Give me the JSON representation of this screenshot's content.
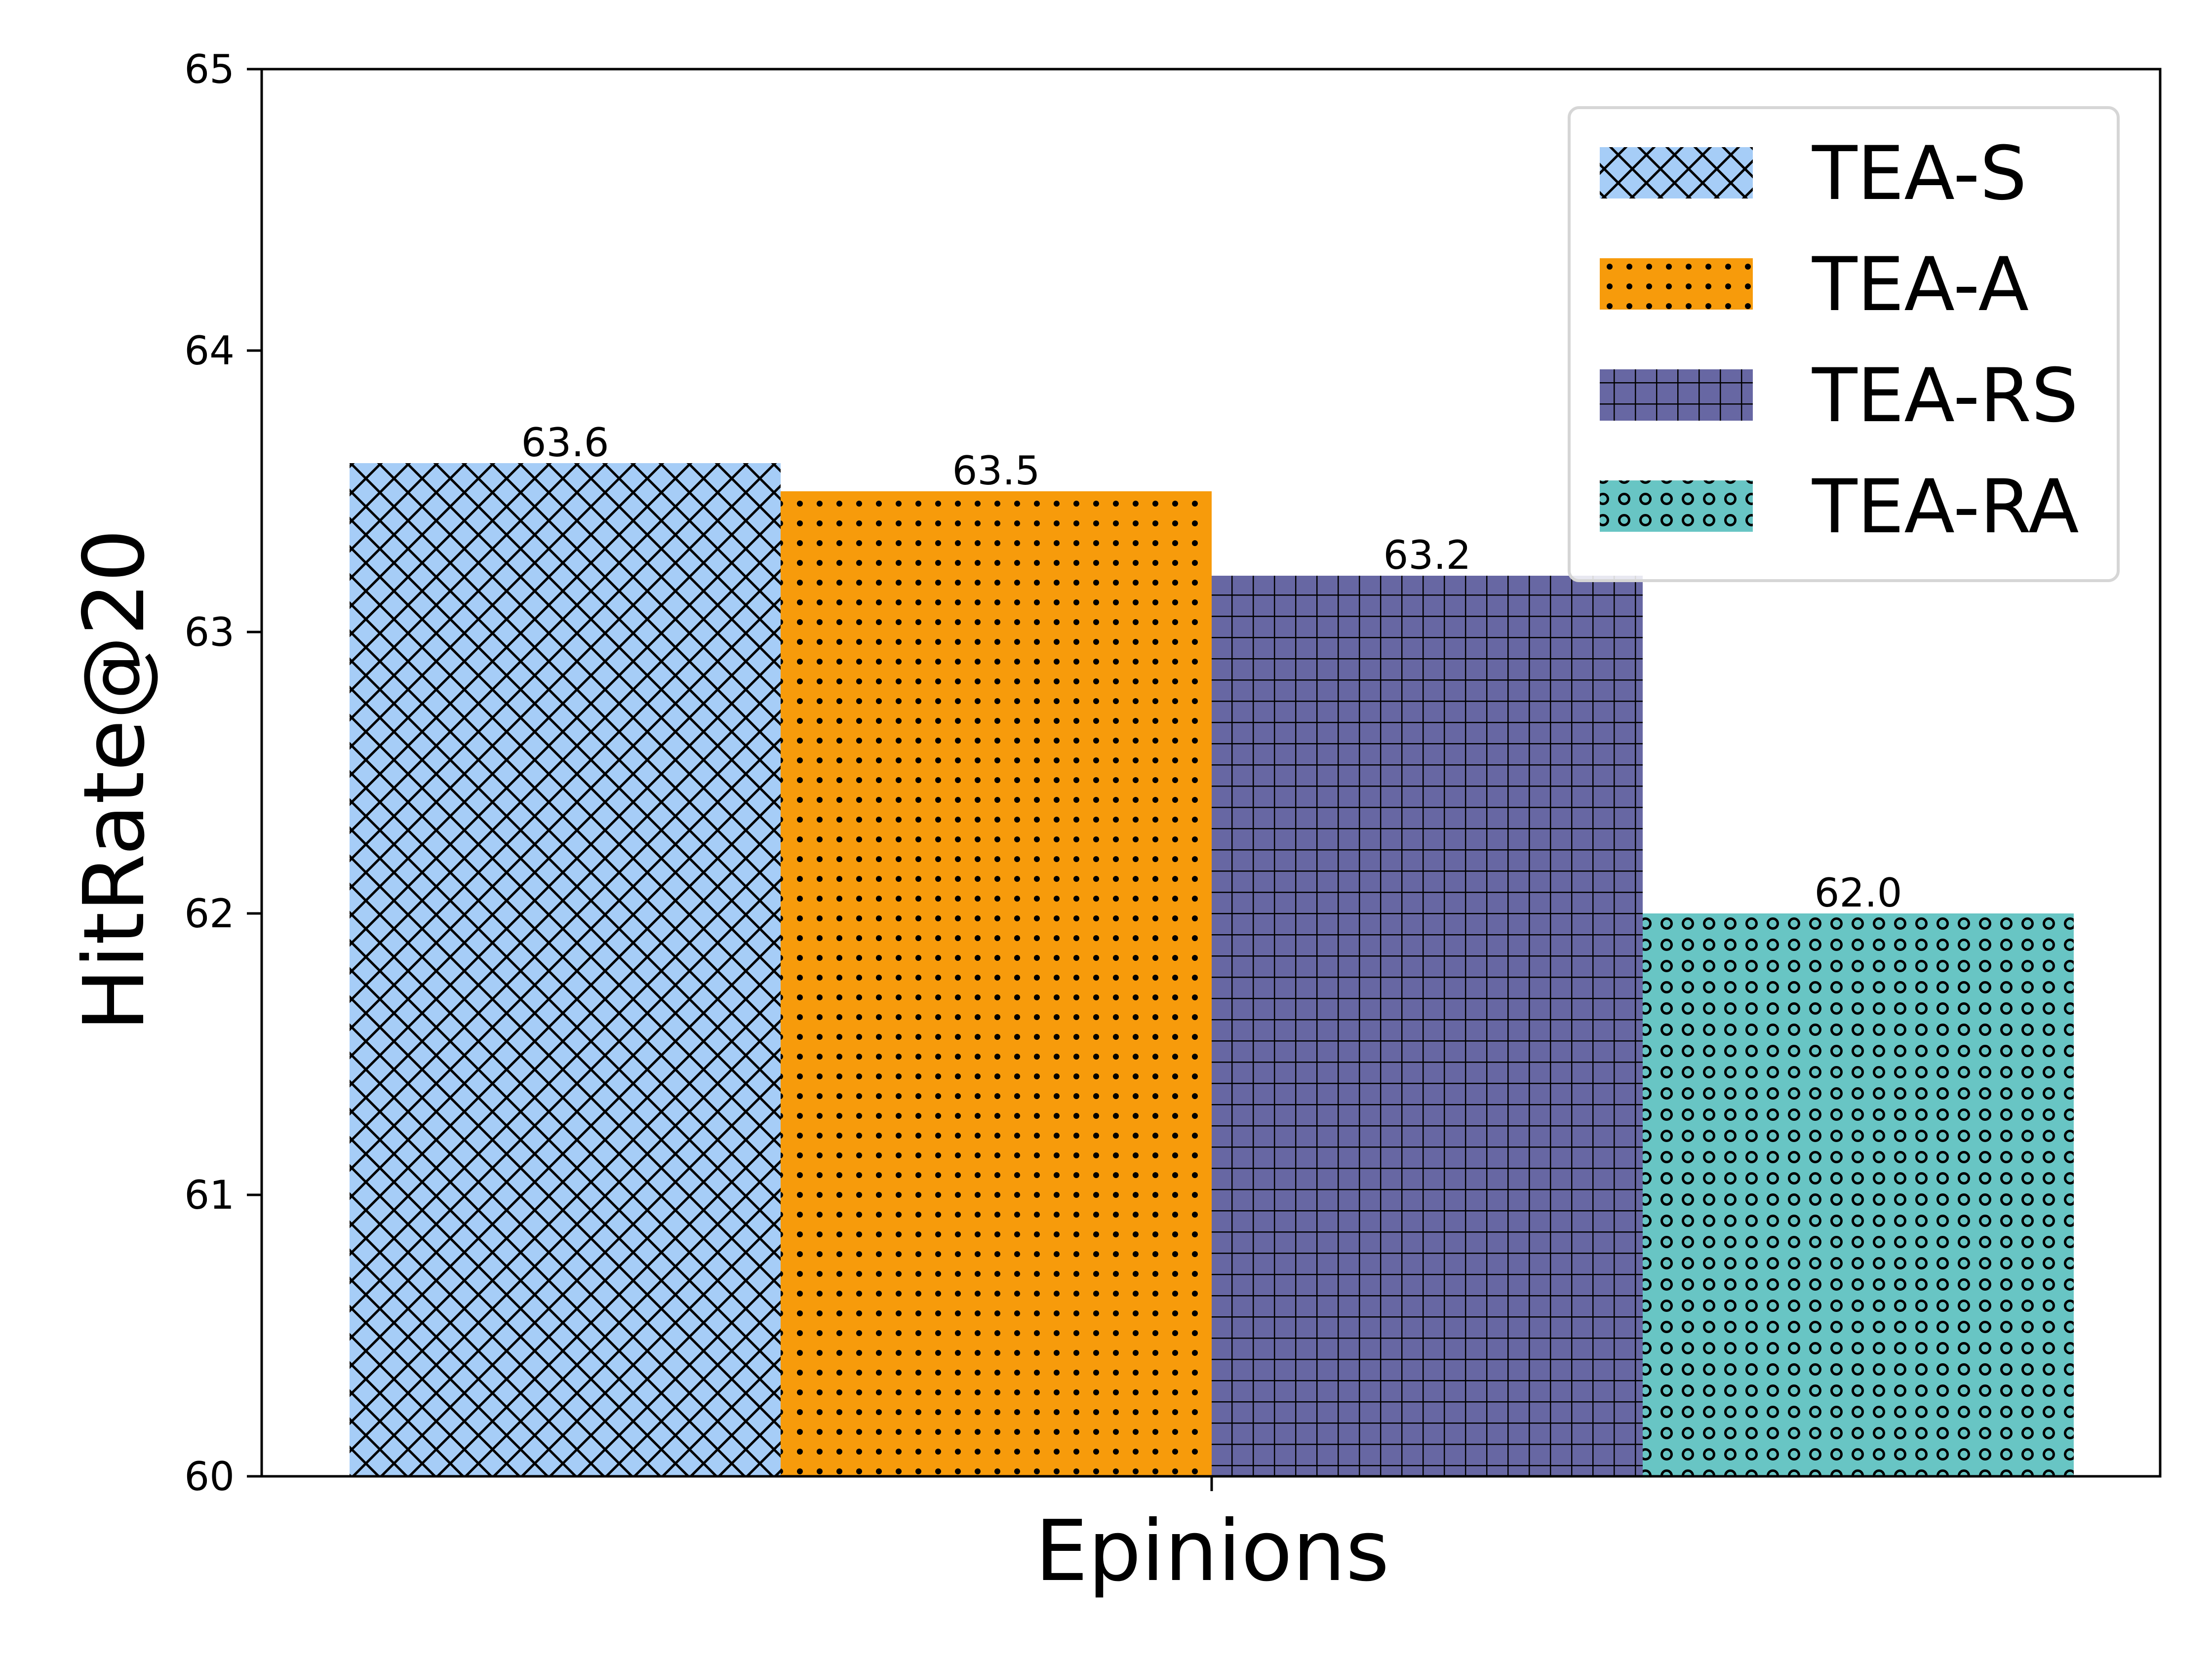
{
  "chart_data": {
    "type": "bar",
    "categories": [
      "Epinions"
    ],
    "series": [
      {
        "name": "TEA-S",
        "values": [
          63.6
        ],
        "color": "#a6cdf7",
        "pattern": "crosshatch"
      },
      {
        "name": "TEA-A",
        "values": [
          63.5
        ],
        "color": "#f79b0b",
        "pattern": "dots"
      },
      {
        "name": "TEA-RS",
        "values": [
          63.2
        ],
        "color": "#6767a3",
        "pattern": "grid"
      },
      {
        "name": "TEA-RA",
        "values": [
          62.0
        ],
        "color": "#68c5c4",
        "pattern": "rings"
      }
    ],
    "data_labels": [
      "63.6",
      "63.5",
      "63.2",
      "62.0"
    ],
    "xlabel": "Epinions",
    "ylabel": "HitRate@20",
    "ylim": [
      60,
      65
    ],
    "yticks": [
      60,
      61,
      62,
      63,
      64,
      65
    ],
    "legend_position": "top-right",
    "grid": false
  }
}
